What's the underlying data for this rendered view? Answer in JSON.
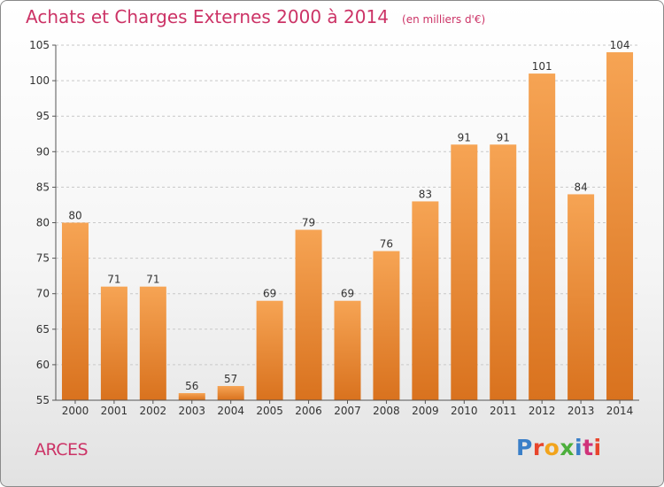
{
  "header": {
    "title": "Achats et Charges Externes 2000 à 2014",
    "subtitle": "(en milliers d'€)"
  },
  "footer": {
    "place": "ARCES",
    "logo_text": "Proxiti"
  },
  "colors": {
    "title": "#cc3366",
    "bar_light": "#f6a454",
    "bar_dark": "#d9721e",
    "logo_letters": [
      "#3a7fc8",
      "#e8452c",
      "#f2a41c",
      "#4caf3c",
      "#3a7fc8",
      "#d0337a",
      "#e8452c"
    ]
  },
  "chart_data": {
    "type": "bar",
    "categories": [
      "2000",
      "2001",
      "2002",
      "2003",
      "2004",
      "2005",
      "2006",
      "2007",
      "2008",
      "2009",
      "2010",
      "2011",
      "2012",
      "2013",
      "2014"
    ],
    "values": [
      80,
      71,
      71,
      56,
      57,
      69,
      79,
      69,
      76,
      83,
      91,
      91,
      101,
      84,
      104
    ],
    "ylim": [
      55,
      105
    ],
    "yticks": [
      55,
      60,
      65,
      70,
      75,
      80,
      85,
      90,
      95,
      100,
      105
    ],
    "grid": "horizontal dashed",
    "xlabel": "",
    "ylabel": ""
  }
}
